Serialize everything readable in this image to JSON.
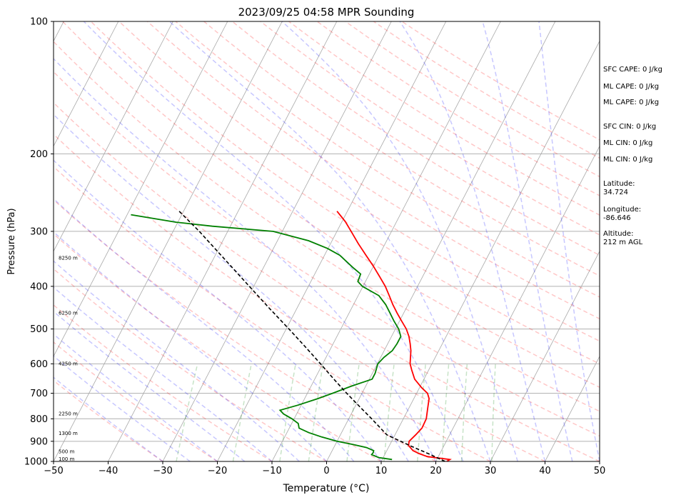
{
  "chart_data": {
    "type": "line",
    "title": "2023/09/25 04:58 MPR Sounding",
    "xlabel": "Temperature (°C)",
    "ylabel": "Pressure (hPa)",
    "xlim": [
      -50,
      50
    ],
    "ylim": [
      1000,
      100
    ],
    "y_scale": "log",
    "x_ticks": [
      "−50",
      "−40",
      "−30",
      "−20",
      "−10",
      "0",
      "10",
      "20",
      "30",
      "40",
      "50"
    ],
    "x_tick_values": [
      -50,
      -40,
      -30,
      -20,
      -10,
      0,
      10,
      20,
      30,
      40,
      50
    ],
    "y_ticks": [
      "100",
      "200",
      "300",
      "400",
      "500",
      "600",
      "700",
      "800",
      "900",
      "1000"
    ],
    "y_tick_values": [
      100,
      200,
      300,
      400,
      500,
      600,
      700,
      800,
      900,
      1000
    ],
    "grid": true,
    "skew": "skew-T log-p",
    "height_labels": [
      {
        "text": "100 m",
        "p": 1000
      },
      {
        "text": "500 m",
        "p": 950
      },
      {
        "text": "1300 m",
        "p": 865
      },
      {
        "text": "2250 m",
        "p": 780
      },
      {
        "text": "4250 m",
        "p": 600
      },
      {
        "text": "6250 m",
        "p": 460
      },
      {
        "text": "8250 m",
        "p": 345
      }
    ],
    "series": [
      {
        "role": "temperature",
        "color": "#ff0000",
        "points": [
          [
            1000,
            22.0
          ],
          [
            990,
            22.4
          ],
          [
            975,
            18.0
          ],
          [
            960,
            16.2
          ],
          [
            945,
            14.8
          ],
          [
            920,
            13.5
          ],
          [
            900,
            13.2
          ],
          [
            870,
            13.8
          ],
          [
            840,
            14.3
          ],
          [
            800,
            14.2
          ],
          [
            760,
            13.5
          ],
          [
            720,
            12.8
          ],
          [
            700,
            12.0
          ],
          [
            680,
            10.4
          ],
          [
            650,
            8.3
          ],
          [
            620,
            6.9
          ],
          [
            600,
            6.0
          ],
          [
            560,
            4.9
          ],
          [
            540,
            4.1
          ],
          [
            520,
            3.2
          ],
          [
            500,
            2.0
          ],
          [
            480,
            0.4
          ],
          [
            460,
            -1.2
          ],
          [
            440,
            -2.8
          ],
          [
            420,
            -4.3
          ],
          [
            400,
            -5.9
          ],
          [
            380,
            -7.9
          ],
          [
            360,
            -10.0
          ],
          [
            340,
            -12.4
          ],
          [
            320,
            -14.9
          ],
          [
            300,
            -17.4
          ],
          [
            285,
            -19.4
          ],
          [
            270,
            -21.9
          ]
        ]
      },
      {
        "role": "dewpoint",
        "color": "#008000",
        "points": [
          [
            990,
            11.8
          ],
          [
            980,
            9.2
          ],
          [
            965,
            7.6
          ],
          [
            955,
            7.7
          ],
          [
            945,
            7.6
          ],
          [
            930,
            6.0
          ],
          [
            915,
            3.2
          ],
          [
            900,
            0.0
          ],
          [
            880,
            -3.2
          ],
          [
            860,
            -6.0
          ],
          [
            840,
            -8.2
          ],
          [
            820,
            -8.8
          ],
          [
            800,
            -10.4
          ],
          [
            780,
            -12.4
          ],
          [
            765,
            -13.4
          ],
          [
            745,
            -10.6
          ],
          [
            720,
            -7.6
          ],
          [
            700,
            -5.4
          ],
          [
            675,
            -2.7
          ],
          [
            650,
            0.5
          ],
          [
            630,
            0.5
          ],
          [
            600,
            0.1
          ],
          [
            580,
            0.6
          ],
          [
            560,
            1.5
          ],
          [
            540,
            1.7
          ],
          [
            520,
            1.7
          ],
          [
            500,
            0.6
          ],
          [
            480,
            -1.0
          ],
          [
            460,
            -2.5
          ],
          [
            440,
            -4.1
          ],
          [
            420,
            -6.2
          ],
          [
            400,
            -10.1
          ],
          [
            390,
            -11.4
          ],
          [
            375,
            -11.6
          ],
          [
            362,
            -13.7
          ],
          [
            340,
            -17.2
          ],
          [
            328,
            -20.1
          ],
          [
            315,
            -24.3
          ],
          [
            300,
            -31.7
          ],
          [
            292,
            -43.3
          ],
          [
            286,
            -50.3
          ],
          [
            275,
            -59.3
          ]
        ]
      },
      {
        "role": "parcel",
        "color": "#000000",
        "style": "dashed",
        "points": [
          [
            1000,
            21.7
          ],
          [
            960,
            17.9
          ],
          [
            925,
            14.2
          ],
          [
            890,
            10.6
          ],
          [
            870,
            8.5
          ],
          [
            850,
            7.3
          ],
          [
            800,
            4.2
          ],
          [
            750,
            0.8
          ],
          [
            700,
            -2.8
          ],
          [
            650,
            -6.5
          ],
          [
            600,
            -10.4
          ],
          [
            550,
            -14.7
          ],
          [
            500,
            -19.5
          ],
          [
            450,
            -24.9
          ],
          [
            400,
            -30.8
          ],
          [
            350,
            -37.5
          ],
          [
            300,
            -45.2
          ],
          [
            270,
            -50.8
          ]
        ]
      }
    ],
    "background_lines": {
      "dry_adiabats_color": "#ff0000",
      "moist_adiabats_color": "#0000ff",
      "mixing_ratio_color": "#008000"
    }
  },
  "side_panel": {
    "sfc_cape": "SFC CAPE: 0 J/kg",
    "ml_cape_1": "ML CAPE: 0 J/kg",
    "ml_cape_2": "ML CAPE: 0 J/kg",
    "sfc_cin": "SFC CIN: 0 J/kg",
    "ml_cin_1": "ML CIN: 0 J/kg",
    "ml_cin_2": "ML CIN: 0 J/kg",
    "latitude_label": "Latitude:",
    "latitude_value": "34.724",
    "longitude_label": "Longitude:",
    "longitude_value": "-86.646",
    "altitude_label": "Altitude:",
    "altitude_value": "212 m AGL"
  }
}
